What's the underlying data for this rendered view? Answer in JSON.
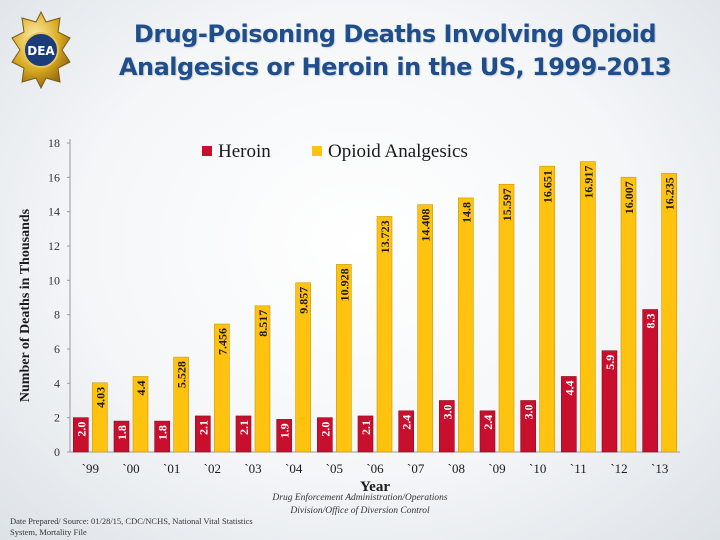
{
  "slide": {
    "title_line1": "Drug-Poisoning Deaths Involving Opioid",
    "title_line2": "Analgesics or Heroin in the US, 1999-2013",
    "badge_text": "DEA",
    "credit_line1": "Drug Enforcement Administration/Operations",
    "credit_line2": "Division/Office of Diversion Control",
    "source_line1": "Date Prepared/ Source: 01/28/15, CDC/NCHS, National Vital Statistics",
    "source_line2": "System, Mortality File"
  },
  "colors": {
    "heroin": "#c8102e",
    "opioid": "#ffc20e",
    "title": "#1f4e8c"
  },
  "chart_data": {
    "type": "bar",
    "title": "Drug-Poisoning Deaths Involving Opioid Analgesics or Heroin in the US, 1999-2013",
    "xlabel": "Year",
    "ylabel": "Number of Deaths in Thousands",
    "ylim": [
      0,
      18
    ],
    "yticks": [
      0,
      2,
      4,
      6,
      8,
      10,
      12,
      14,
      16,
      18
    ],
    "legend_position": "top",
    "categories": [
      "`99",
      "`00",
      "`01",
      "`02",
      "`03",
      "`04",
      "`05",
      "`06",
      "`07",
      "`08",
      "`09",
      "`10",
      "`11",
      "`12",
      "`13"
    ],
    "series": [
      {
        "name": "Heroin",
        "values": [
          2.0,
          1.8,
          1.8,
          2.1,
          2.1,
          1.9,
          2.0,
          2.1,
          2.4,
          3.0,
          2.4,
          3.0,
          4.4,
          5.9,
          8.3
        ],
        "labels": [
          "2.0",
          "1.8",
          "1.8",
          "2.1",
          "2.1",
          "1.9",
          "2.0",
          "2.1",
          "2.4",
          "3.0",
          "2.4",
          "3.0",
          "4.4",
          "5.9",
          "8.3"
        ]
      },
      {
        "name": "Opioid Analgesics",
        "values": [
          4.03,
          4.4,
          5.528,
          7.456,
          8.517,
          9.857,
          10.928,
          13.723,
          14.408,
          14.8,
          15.597,
          16.651,
          16.917,
          16.007,
          16.235
        ],
        "labels": [
          "4.03",
          "4.4",
          "5.528",
          "7.456",
          "8.517",
          "9.857",
          "10.928",
          "13.723",
          "14.408",
          "14.8",
          "15.597",
          "16.651",
          "16.917",
          "16.007",
          "16.235"
        ]
      }
    ]
  }
}
